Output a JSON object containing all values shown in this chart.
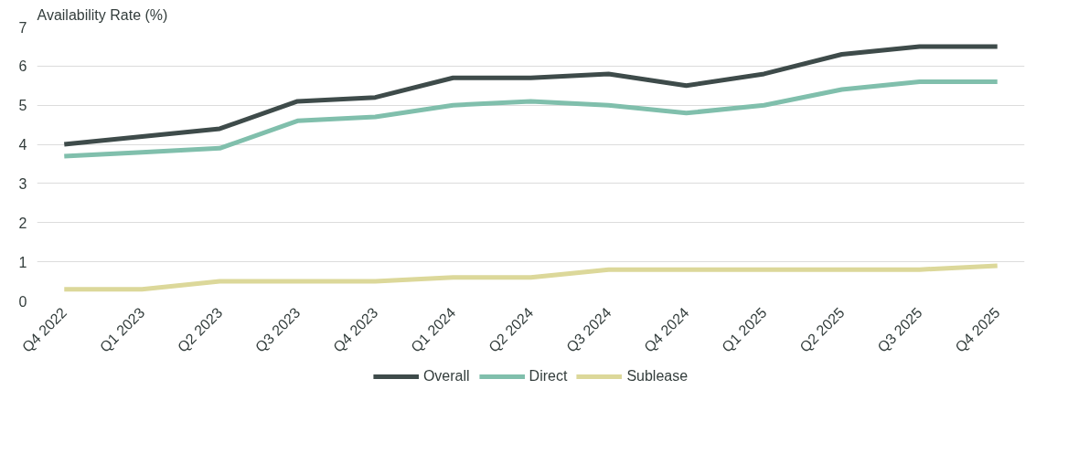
{
  "chart_data": {
    "type": "line",
    "ylabel": "Availability Rate (%)",
    "categories": [
      "Q4 2022",
      "Q1 2023",
      "Q2 2023",
      "Q3 2023",
      "Q4 2023",
      "Q1 2024",
      "Q2 2024",
      "Q3 2024",
      "Q4 2024",
      "Q1 2025",
      "Q2 2025",
      "Q3 2025",
      "Q4 2025"
    ],
    "series": [
      {
        "name": "Overall",
        "color": "#3e4b4a",
        "values": [
          4.0,
          4.2,
          4.4,
          5.1,
          5.2,
          5.7,
          5.7,
          5.8,
          5.5,
          5.8,
          6.3,
          6.5,
          6.5
        ]
      },
      {
        "name": "Direct",
        "color": "#80bfac",
        "values": [
          3.7,
          3.8,
          3.9,
          4.6,
          4.7,
          5.0,
          5.1,
          5.0,
          4.8,
          5.0,
          5.4,
          5.6,
          5.6
        ]
      },
      {
        "name": "Sublease",
        "color": "#dcd89a",
        "values": [
          0.3,
          0.3,
          0.5,
          0.5,
          0.5,
          0.6,
          0.6,
          0.8,
          0.8,
          0.8,
          0.8,
          0.8,
          0.9
        ]
      }
    ],
    "ylim": [
      0,
      7
    ],
    "yticks": [
      0,
      1,
      2,
      3,
      4,
      5,
      6,
      7
    ],
    "grid": "y",
    "legend": "bottom",
    "marker": "none",
    "line_style": "solid"
  }
}
